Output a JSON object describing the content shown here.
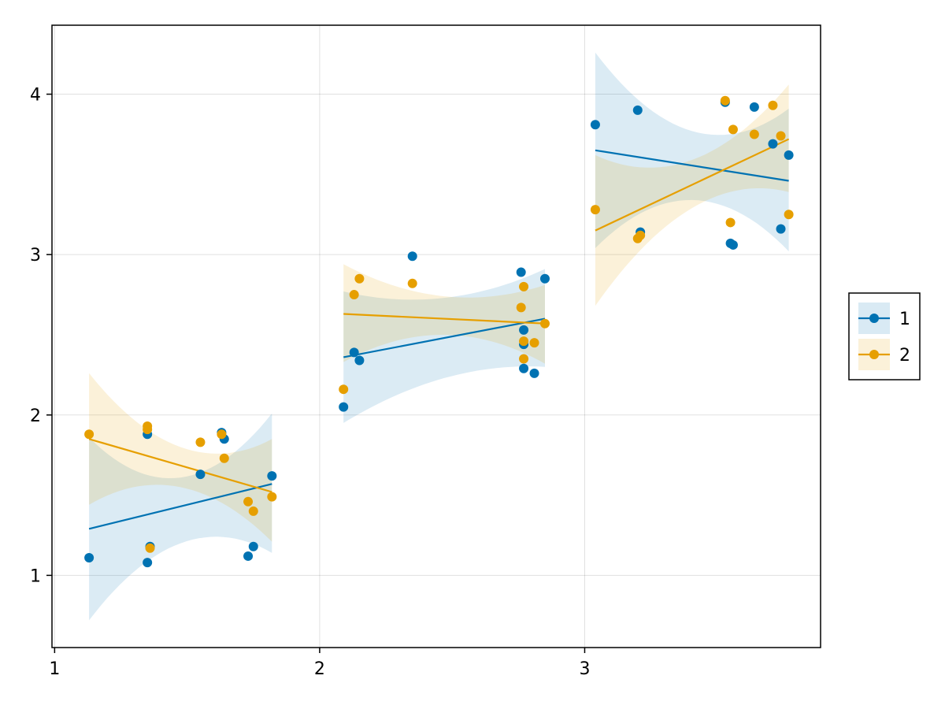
{
  "chart_data": {
    "type": "scatter",
    "title": "",
    "xlabel": "",
    "ylabel": "",
    "xlim": [
      0.99,
      3.89
    ],
    "ylim": [
      0.55,
      4.43
    ],
    "xticks": [
      "1",
      "2",
      "3"
    ],
    "yticks": [
      "1",
      "2",
      "3",
      "4"
    ],
    "grid": true,
    "legend_position": "right",
    "series": [
      {
        "name": "1",
        "color": "#0072B2",
        "points": [
          [
            1.13,
            1.11
          ],
          [
            1.35,
            1.88
          ],
          [
            1.35,
            1.08
          ],
          [
            1.36,
            1.18
          ],
          [
            1.55,
            1.63
          ],
          [
            1.63,
            1.89
          ],
          [
            1.64,
            1.85
          ],
          [
            1.73,
            1.12
          ],
          [
            1.75,
            1.18
          ],
          [
            1.82,
            1.62
          ],
          [
            2.09,
            2.05
          ],
          [
            2.13,
            2.39
          ],
          [
            2.15,
            2.34
          ],
          [
            2.35,
            2.99
          ],
          [
            2.76,
            2.89
          ],
          [
            2.77,
            2.53
          ],
          [
            2.77,
            2.44
          ],
          [
            2.77,
            2.29
          ],
          [
            2.81,
            2.26
          ],
          [
            2.85,
            2.85
          ],
          [
            3.04,
            3.81
          ],
          [
            3.2,
            3.9
          ],
          [
            3.21,
            3.14
          ],
          [
            3.53,
            3.95
          ],
          [
            3.55,
            3.07
          ],
          [
            3.56,
            3.06
          ],
          [
            3.64,
            3.92
          ],
          [
            3.71,
            3.69
          ],
          [
            3.74,
            3.16
          ],
          [
            3.77,
            3.62
          ]
        ],
        "fit": [
          [
            1.13,
            1.29
          ],
          [
            1.82,
            1.57
          ],
          [
            2.09,
            2.36
          ],
          [
            2.85,
            2.6
          ],
          [
            3.04,
            3.65
          ],
          [
            3.77,
            3.46
          ]
        ],
        "band": [
          {
            "x": [
              1.13,
              1.475,
              1.82
            ],
            "lower": [
              0.72,
              1.2,
              1.14
            ],
            "upper": [
              1.86,
              1.61,
              2.01
            ]
          },
          {
            "x": [
              2.09,
              2.47,
              2.85
            ],
            "lower": [
              1.95,
              2.23,
              2.3
            ],
            "upper": [
              2.77,
              2.73,
              2.91
            ]
          },
          {
            "x": [
              3.04,
              3.405,
              3.77
            ],
            "lower": [
              3.04,
              3.34,
              3.02
            ],
            "upper": [
              4.26,
              3.77,
              3.91
            ]
          }
        ]
      },
      {
        "name": "2",
        "color": "#E69F00",
        "points": [
          [
            1.13,
            1.88
          ],
          [
            1.35,
            1.91
          ],
          [
            1.35,
            1.93
          ],
          [
            1.36,
            1.17
          ],
          [
            1.55,
            1.83
          ],
          [
            1.63,
            1.88
          ],
          [
            1.64,
            1.73
          ],
          [
            1.73,
            1.46
          ],
          [
            1.75,
            1.4
          ],
          [
            1.82,
            1.49
          ],
          [
            2.09,
            2.16
          ],
          [
            2.13,
            2.75
          ],
          [
            2.15,
            2.85
          ],
          [
            2.35,
            2.82
          ],
          [
            2.76,
            2.67
          ],
          [
            2.77,
            2.8
          ],
          [
            2.77,
            2.46
          ],
          [
            2.77,
            2.35
          ],
          [
            2.81,
            2.45
          ],
          [
            2.85,
            2.57
          ],
          [
            3.04,
            3.28
          ],
          [
            3.2,
            3.1
          ],
          [
            3.21,
            3.12
          ],
          [
            3.53,
            3.96
          ],
          [
            3.55,
            3.2
          ],
          [
            3.56,
            3.78
          ],
          [
            3.64,
            3.75
          ],
          [
            3.71,
            3.93
          ],
          [
            3.74,
            3.74
          ],
          [
            3.77,
            3.25
          ]
        ],
        "fit": [
          [
            1.13,
            1.85
          ],
          [
            1.82,
            1.52
          ],
          [
            2.09,
            2.63
          ],
          [
            2.85,
            2.57
          ],
          [
            3.04,
            3.15
          ],
          [
            3.77,
            3.72
          ]
        ],
        "band": [
          {
            "x": [
              1.13,
              1.475,
              1.82
            ],
            "lower": [
              1.44,
              1.55,
              1.21
            ],
            "upper": [
              2.26,
              1.8,
              1.85
            ]
          },
          {
            "x": [
              2.09,
              2.47,
              2.85
            ],
            "lower": [
              2.33,
              2.5,
              2.32
            ],
            "upper": [
              2.94,
              2.74,
              2.81
            ]
          },
          {
            "x": [
              3.04,
              3.405,
              3.77
            ],
            "lower": [
              2.68,
              3.29,
              3.39
            ],
            "upper": [
              3.62,
              3.59,
              4.06
            ]
          }
        ]
      }
    ]
  }
}
